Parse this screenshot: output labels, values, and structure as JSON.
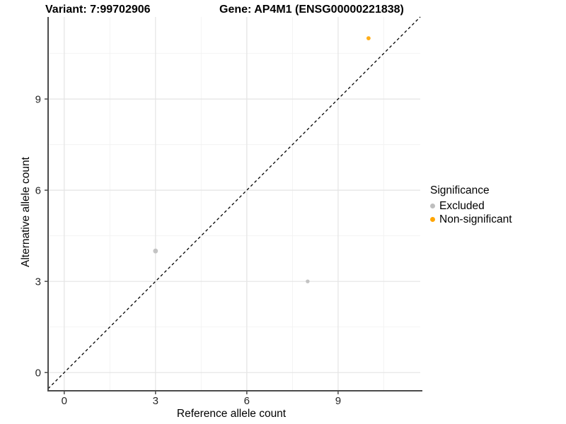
{
  "chart_data": {
    "type": "scatter",
    "title_left": "Variant: 7:99702906",
    "title_right": "Gene: AP4M1 (ENSG00000221838)",
    "xlabel": "Reference allele count",
    "ylabel": "Alternative allele count",
    "xlim": [
      -0.53,
      11.7
    ],
    "ylim": [
      -0.6,
      11.7
    ],
    "xticks": [
      0,
      3,
      6,
      9
    ],
    "yticks": [
      0,
      3,
      6,
      9
    ],
    "minor_xticks": [
      1.5,
      4.5,
      7.5,
      10.5
    ],
    "minor_yticks": [
      1.5,
      4.5,
      7.5,
      10.5
    ],
    "grid": "major+minor",
    "identity_line": {
      "type": "dashed",
      "equation": "y = x",
      "color": "#000000"
    },
    "series": [
      {
        "name": "Excluded",
        "color": "#BEBEBE",
        "points": [
          {
            "x": 3,
            "y": 4,
            "r": 3.4
          },
          {
            "x": 8,
            "y": 3,
            "r": 2.7
          }
        ]
      },
      {
        "name": "Non-significant",
        "color": "#FFA500",
        "points": [
          {
            "x": 10,
            "y": 11,
            "r": 2.9
          }
        ]
      }
    ],
    "legend": {
      "title": "Significance",
      "position": "right"
    }
  },
  "colors": {
    "axis_line": "#4A4A4A",
    "grid_major": "#E4E4E4",
    "grid_minor": "#F2F2F2",
    "tick_text": "#262626",
    "background": "#FFFFFF"
  }
}
